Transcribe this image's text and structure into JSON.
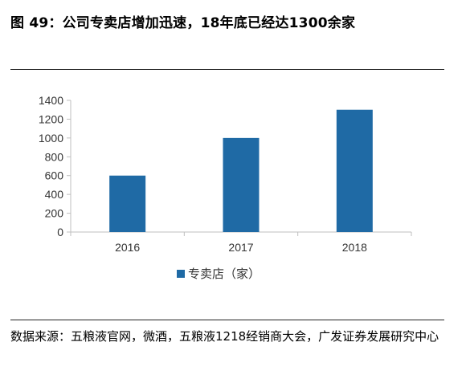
{
  "title": "图 49：公司专卖店增加迅速，18年底已经达1300余家",
  "source": "数据来源：五粮液官网，微酒，五粮液1218经销商大会，广发证券发展研究中心",
  "colors": {
    "bar": "#1f6aa5",
    "axis": "#bfbfbf",
    "text": "#333333"
  },
  "chart_data": {
    "type": "bar",
    "categories": [
      "2016",
      "2017",
      "2018"
    ],
    "series": [
      {
        "name": "专卖店（家）",
        "values": [
          600,
          1000,
          1300
        ]
      }
    ],
    "ylim": [
      0,
      1400
    ],
    "yticks": [
      0,
      200,
      400,
      600,
      800,
      1000,
      1200,
      1400
    ],
    "grid": false,
    "legend": "bottom-center"
  }
}
